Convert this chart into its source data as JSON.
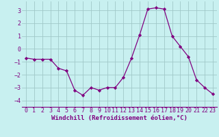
{
  "x": [
    0,
    1,
    2,
    3,
    4,
    5,
    6,
    7,
    8,
    9,
    10,
    11,
    12,
    13,
    14,
    15,
    16,
    17,
    18,
    19,
    20,
    21,
    22,
    23
  ],
  "y": [
    -0.7,
    -0.8,
    -0.8,
    -0.8,
    -1.5,
    -1.7,
    -3.2,
    -3.6,
    -3.0,
    -3.2,
    -3.0,
    -3.0,
    -2.2,
    -0.7,
    1.1,
    3.1,
    3.2,
    3.1,
    1.0,
    0.2,
    -0.6,
    -2.4,
    -3.0,
    -3.5
  ],
  "line_color": "#800080",
  "marker": "D",
  "marker_size": 2.2,
  "bg_color": "#c8f0f0",
  "grid_color": "#a0c8c8",
  "xlabel": "Windchill (Refroidissement éolien,°C)",
  "xlabel_fontsize": 6.5,
  "tick_fontsize": 6.0,
  "xlim": [
    -0.5,
    23.5
  ],
  "ylim": [
    -4.5,
    3.7
  ],
  "yticks": [
    -4,
    -3,
    -2,
    -1,
    0,
    1,
    2,
    3
  ],
  "xticks": [
    0,
    1,
    2,
    3,
    4,
    5,
    6,
    7,
    8,
    9,
    10,
    11,
    12,
    13,
    14,
    15,
    16,
    17,
    18,
    19,
    20,
    21,
    22,
    23
  ]
}
